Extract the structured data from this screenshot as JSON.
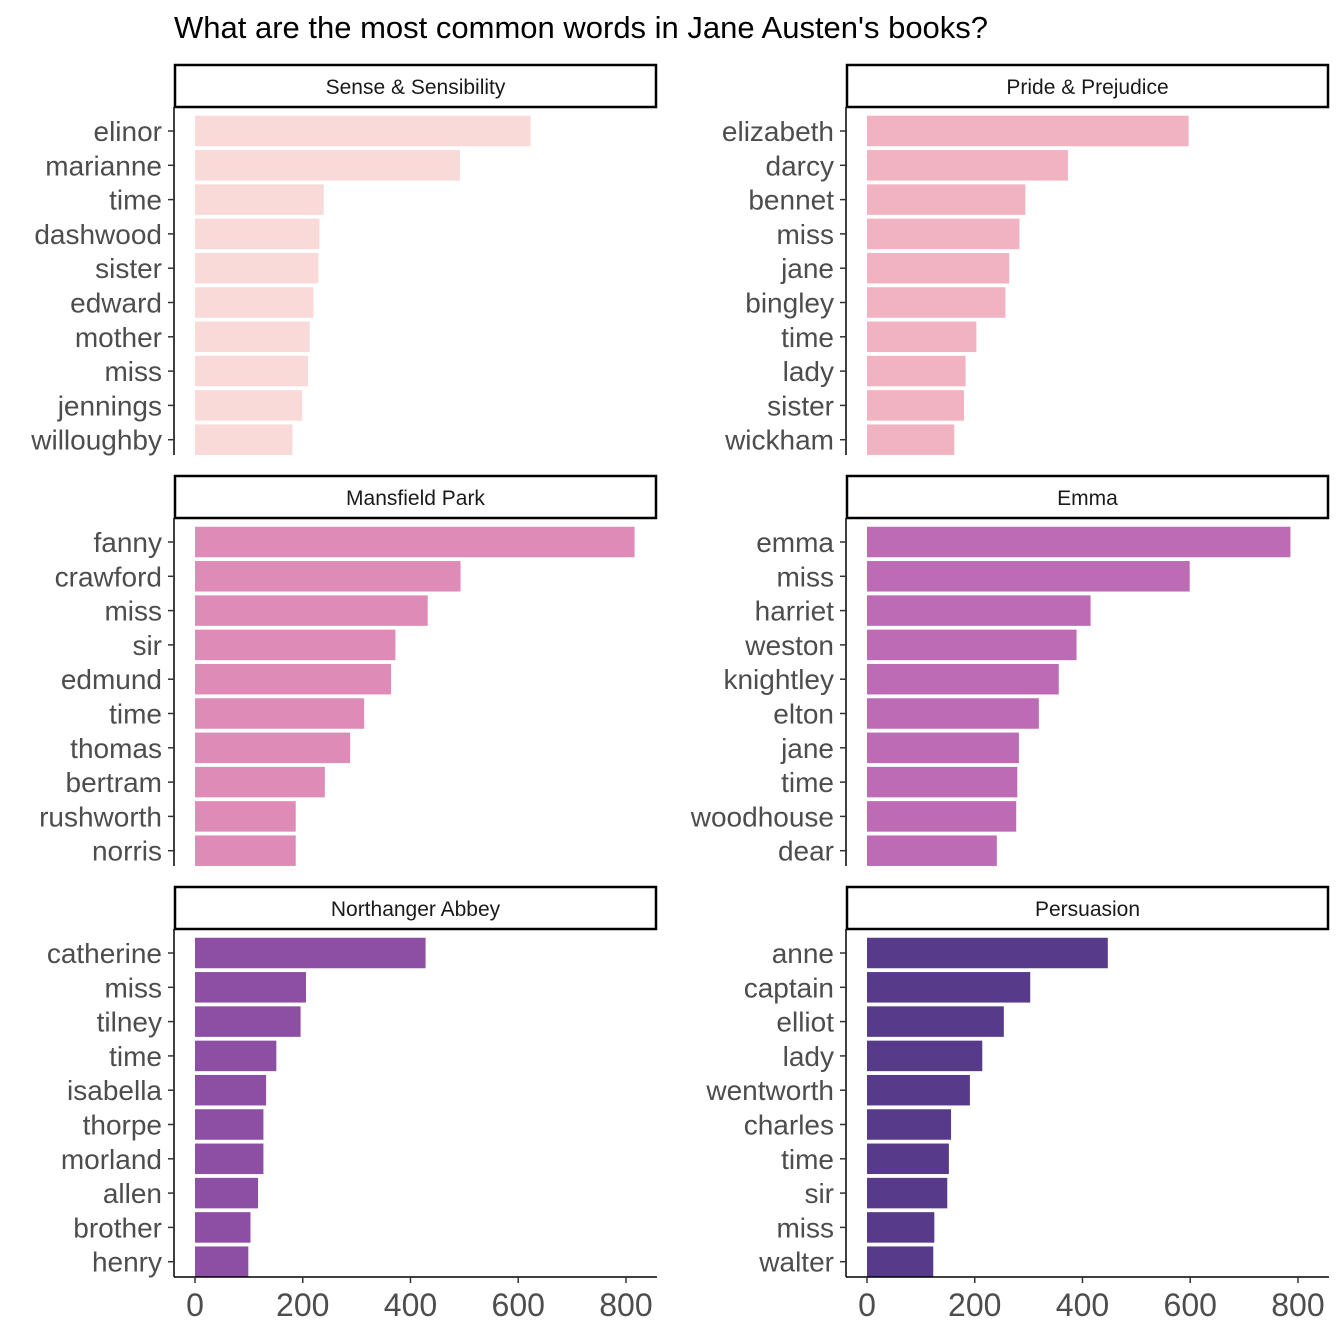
{
  "chart_data": {
    "type": "bar",
    "orientation": "horizontal",
    "title": "What are the most common words in Jane Austen's books?",
    "xlabel": "",
    "ylabel": "",
    "xlim": [
      0,
      850
    ],
    "x_ticks": [
      "0",
      "200",
      "400",
      "600",
      "800"
    ],
    "grid": false,
    "legend": "none",
    "panels": [
      {
        "book": "Sense & Sensibility",
        "color": "#f9dad9",
        "categories": [
          "elinor",
          "marianne",
          "time",
          "dashwood",
          "sister",
          "edward",
          "mother",
          "miss",
          "jennings",
          "willoughby"
        ],
        "values": [
          623,
          492,
          239,
          231,
          229,
          220,
          213,
          210,
          199,
          181
        ]
      },
      {
        "book": "Pride & Prejudice",
        "color": "#f1b2c2",
        "categories": [
          "elizabeth",
          "darcy",
          "bennet",
          "miss",
          "jane",
          "bingley",
          "time",
          "lady",
          "sister",
          "wickham"
        ],
        "values": [
          597,
          373,
          294,
          283,
          264,
          257,
          203,
          183,
          180,
          162
        ]
      },
      {
        "book": "Mansfield Park",
        "color": "#df8bb8",
        "categories": [
          "fanny",
          "crawford",
          "miss",
          "sir",
          "edmund",
          "time",
          "thomas",
          "bertram",
          "rushworth",
          "norris"
        ],
        "values": [
          816,
          493,
          432,
          372,
          364,
          314,
          288,
          241,
          187,
          187
        ]
      },
      {
        "book": "Emma",
        "color": "#bd6bb4",
        "categories": [
          "emma",
          "miss",
          "harriet",
          "weston",
          "knightley",
          "elton",
          "jane",
          "time",
          "woodhouse",
          "dear"
        ],
        "values": [
          786,
          599,
          415,
          389,
          356,
          319,
          282,
          279,
          277,
          241
        ]
      },
      {
        "book": "Northanger Abbey",
        "color": "#8c4fa4",
        "categories": [
          "catherine",
          "miss",
          "tilney",
          "time",
          "isabella",
          "thorpe",
          "morland",
          "allen",
          "brother",
          "henry"
        ],
        "values": [
          428,
          206,
          196,
          151,
          132,
          127,
          127,
          117,
          103,
          99
        ]
      },
      {
        "book": "Persuasion",
        "color": "#573b8a",
        "categories": [
          "anne",
          "captain",
          "elliot",
          "lady",
          "wentworth",
          "charles",
          "time",
          "sir",
          "miss",
          "walter"
        ],
        "values": [
          447,
          303,
          254,
          214,
          191,
          156,
          152,
          149,
          125,
          123
        ]
      }
    ]
  }
}
